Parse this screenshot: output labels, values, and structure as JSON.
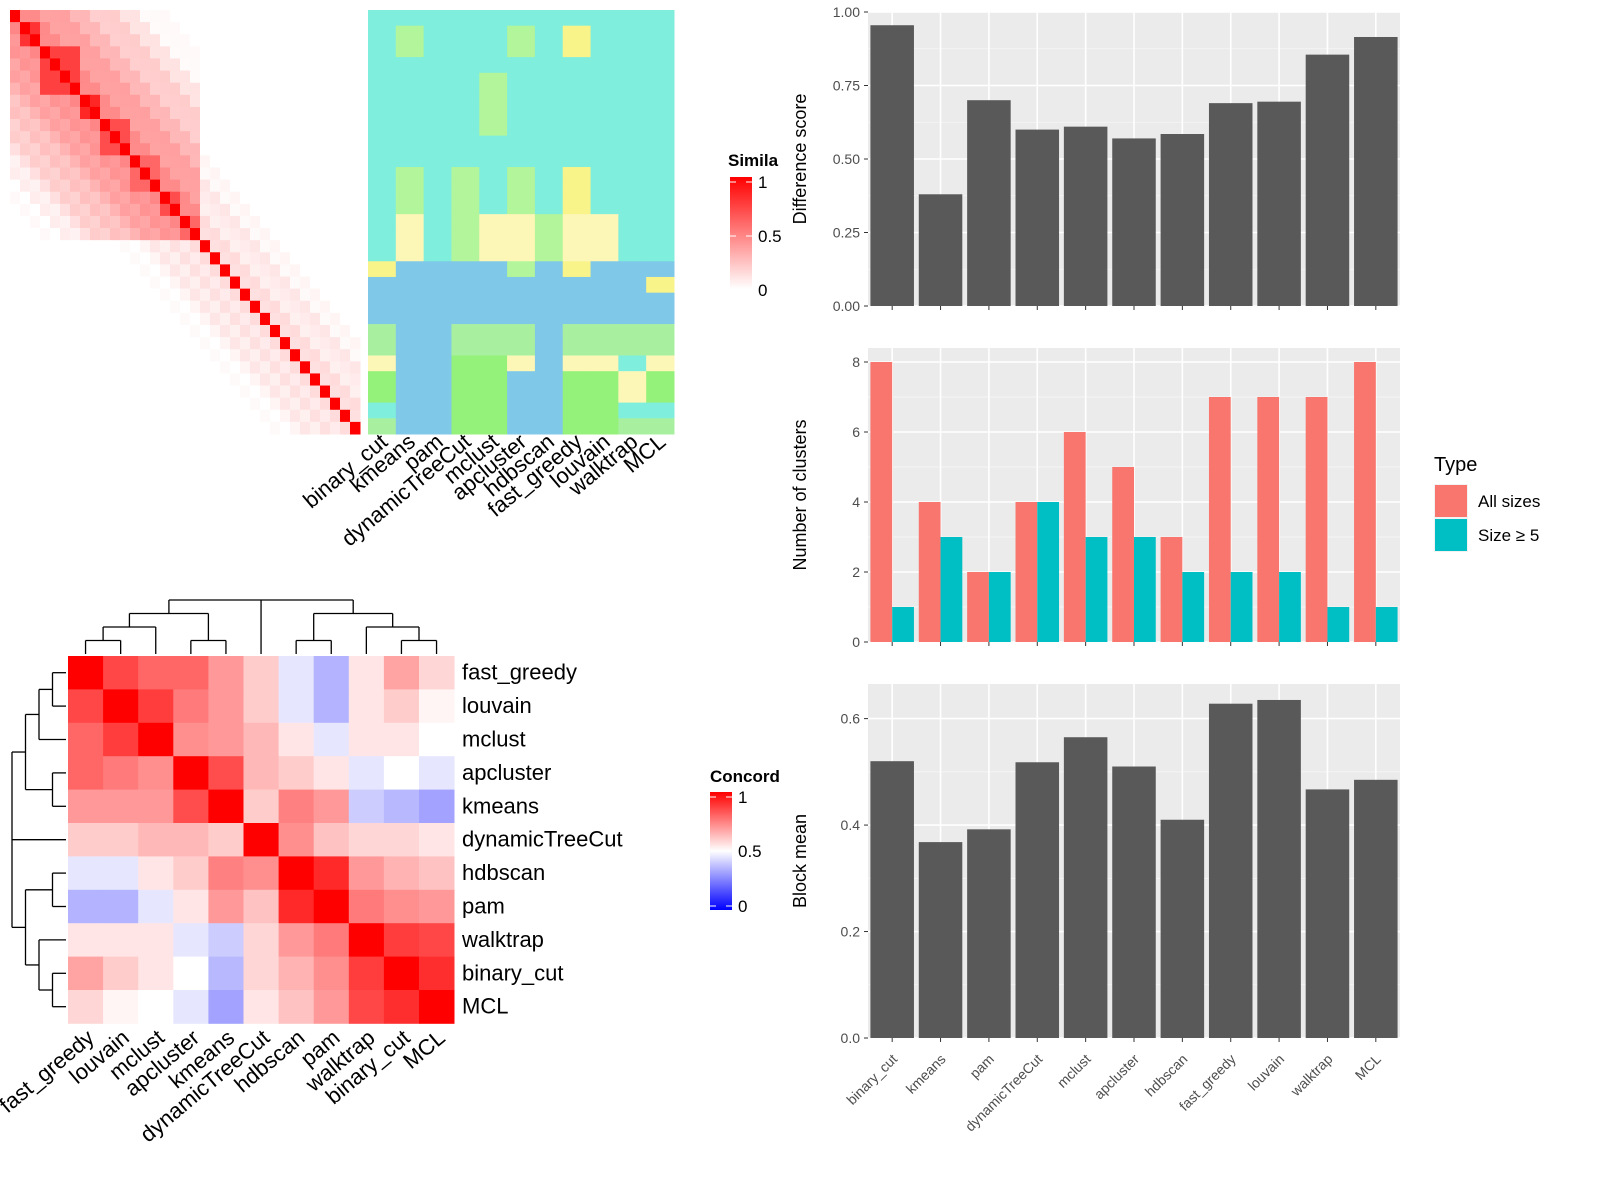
{
  "methods": [
    "binary_cut",
    "kmeans",
    "pam",
    "dynamicTreeCut",
    "mclust",
    "apcluster",
    "hdbscan",
    "fast_greedy",
    "louvain",
    "walktrap",
    "MCL"
  ],
  "chart_data": [
    {
      "id": "similarity-heatmap",
      "type": "heatmap",
      "legend_title": "Simila",
      "legend_ticks": [
        "1",
        "0.5",
        "0"
      ],
      "colors": {
        "high": "#ff0000",
        "low": "#ffffff"
      },
      "n": 35,
      "block_sizes": [
        1,
        2,
        4,
        2,
        3,
        3,
        2,
        2,
        1,
        1,
        1,
        1,
        1,
        1,
        1,
        1,
        1,
        1,
        1,
        1,
        1,
        1,
        1,
        1
      ],
      "intra_values": [
        0.85,
        0.8,
        0.75,
        0.85,
        0.7,
        0.6,
        0.7,
        0.6,
        0.5,
        0.5,
        0.4,
        0.3,
        0.2,
        0.2,
        0.2,
        0.15,
        0.15,
        0.1,
        0.1,
        0.1,
        0.1,
        0.1,
        0.1,
        0.1
      ]
    },
    {
      "id": "cluster-membership",
      "type": "heatmap",
      "columns": [
        "binary_cut",
        "kmeans",
        "pam",
        "dynamicTreeCut",
        "mclust",
        "apcluster",
        "hdbscan",
        "fast_greedy",
        "louvain",
        "walktrap",
        "MCL"
      ],
      "palette": {
        "0": "#80eedc",
        "1": "#b3f59a",
        "2": "#f9f48a",
        "3": "#fdf7b7",
        "4": "#80c8e8",
        "5": "#94f17a",
        "6": "#a8f0a0"
      },
      "rows_compressed": [
        {
          "repeat": 1,
          "cells": [
            0,
            0,
            0,
            0,
            0,
            0,
            0,
            0,
            0,
            0,
            0
          ]
        },
        {
          "repeat": 2,
          "cells": [
            0,
            1,
            0,
            0,
            0,
            1,
            0,
            2,
            0,
            0,
            0
          ]
        },
        {
          "repeat": 1,
          "cells": [
            0,
            0,
            0,
            0,
            0,
            0,
            0,
            0,
            0,
            0,
            0
          ]
        },
        {
          "repeat": 4,
          "cells": [
            0,
            0,
            0,
            0,
            1,
            0,
            0,
            0,
            0,
            0,
            0
          ]
        },
        {
          "repeat": 2,
          "cells": [
            0,
            0,
            0,
            0,
            0,
            0,
            0,
            0,
            0,
            0,
            0
          ]
        },
        {
          "repeat": 3,
          "cells": [
            0,
            1,
            0,
            1,
            0,
            1,
            0,
            2,
            0,
            0,
            0
          ]
        },
        {
          "repeat": 3,
          "cells": [
            0,
            3,
            0,
            1,
            3,
            3,
            1,
            3,
            3,
            0,
            0
          ]
        },
        {
          "repeat": 1,
          "cells": [
            2,
            4,
            4,
            4,
            4,
            1,
            4,
            2,
            4,
            4,
            4
          ]
        },
        {
          "repeat": 1,
          "cells": [
            4,
            4,
            4,
            4,
            4,
            4,
            4,
            4,
            4,
            4,
            2
          ]
        },
        {
          "repeat": 2,
          "cells": [
            4,
            4,
            4,
            4,
            4,
            4,
            4,
            4,
            4,
            4,
            4
          ]
        },
        {
          "repeat": 2,
          "cells": [
            6,
            4,
            4,
            6,
            6,
            6,
            4,
            6,
            6,
            6,
            6
          ]
        },
        {
          "repeat": 1,
          "cells": [
            3,
            4,
            4,
            5,
            5,
            3,
            4,
            3,
            3,
            0,
            3
          ]
        },
        {
          "repeat": 2,
          "cells": [
            5,
            4,
            4,
            5,
            5,
            4,
            4,
            5,
            5,
            3,
            5
          ]
        },
        {
          "repeat": 1,
          "cells": [
            0,
            4,
            4,
            5,
            5,
            4,
            4,
            5,
            5,
            0,
            0
          ]
        },
        {
          "repeat": 1,
          "cells": [
            6,
            4,
            4,
            5,
            5,
            4,
            4,
            5,
            5,
            6,
            6
          ]
        }
      ]
    },
    {
      "id": "concordance-heatmap",
      "type": "heatmap",
      "order": [
        "fast_greedy",
        "louvain",
        "mclust",
        "apcluster",
        "kmeans",
        "dynamicTreeCut",
        "hdbscan",
        "pam",
        "walktrap",
        "binary_cut",
        "MCL"
      ],
      "legend_title": "Concord",
      "legend_ticks": [
        "1",
        "0.5",
        "0"
      ],
      "colors": {
        "high": "#ff0000",
        "mid": "#ffffff",
        "low": "#0000ff"
      },
      "values": [
        [
          1.0,
          0.86,
          0.8,
          0.8,
          0.7,
          0.6,
          0.45,
          0.35,
          0.55,
          0.68,
          0.58
        ],
        [
          0.86,
          1.0,
          0.88,
          0.76,
          0.7,
          0.6,
          0.45,
          0.35,
          0.55,
          0.6,
          0.52
        ],
        [
          0.8,
          0.88,
          1.0,
          0.72,
          0.7,
          0.64,
          0.55,
          0.45,
          0.55,
          0.55,
          0.5
        ],
        [
          0.8,
          0.76,
          0.72,
          1.0,
          0.85,
          0.64,
          0.6,
          0.55,
          0.45,
          0.5,
          0.45
        ],
        [
          0.7,
          0.7,
          0.7,
          0.85,
          1.0,
          0.6,
          0.75,
          0.7,
          0.4,
          0.36,
          0.32
        ],
        [
          0.6,
          0.6,
          0.64,
          0.64,
          0.6,
          1.0,
          0.72,
          0.62,
          0.58,
          0.58,
          0.55
        ],
        [
          0.45,
          0.45,
          0.55,
          0.6,
          0.75,
          0.72,
          1.0,
          0.92,
          0.7,
          0.65,
          0.62
        ],
        [
          0.35,
          0.35,
          0.45,
          0.55,
          0.7,
          0.62,
          0.92,
          1.0,
          0.76,
          0.72,
          0.7
        ],
        [
          0.55,
          0.55,
          0.55,
          0.45,
          0.4,
          0.58,
          0.7,
          0.76,
          1.0,
          0.88,
          0.86
        ],
        [
          0.68,
          0.6,
          0.55,
          0.5,
          0.36,
          0.58,
          0.65,
          0.72,
          0.88,
          1.0,
          0.91
        ],
        [
          0.58,
          0.52,
          0.5,
          0.45,
          0.32,
          0.55,
          0.62,
          0.7,
          0.86,
          0.91,
          1.0
        ]
      ]
    },
    {
      "id": "difference-score",
      "type": "bar",
      "categories": [
        "binary_cut",
        "kmeans",
        "pam",
        "dynamicTreeCut",
        "mclust",
        "apcluster",
        "hdbscan",
        "fast_greedy",
        "louvain",
        "walktrap",
        "MCL"
      ],
      "values": [
        0.955,
        0.38,
        0.7,
        0.6,
        0.61,
        0.57,
        0.585,
        0.69,
        0.695,
        0.855,
        0.915
      ],
      "ylabel": "Difference score",
      "ylim": [
        0,
        1.0
      ],
      "yticks": [
        "0.00",
        "0.25",
        "0.50",
        "0.75",
        "1.00"
      ],
      "ytick_values": [
        0,
        0.25,
        0.5,
        0.75,
        1.0
      ],
      "bar_color": "#595959"
    },
    {
      "id": "number-of-clusters",
      "type": "bar",
      "categories": [
        "binary_cut",
        "kmeans",
        "pam",
        "dynamicTreeCut",
        "mclust",
        "apcluster",
        "hdbscan",
        "fast_greedy",
        "louvain",
        "walktrap",
        "MCL"
      ],
      "series": [
        {
          "name": "All sizes",
          "values": [
            8,
            4,
            2,
            4,
            6,
            5,
            3,
            7,
            7,
            7,
            8
          ],
          "color": "#f8766d"
        },
        {
          "name": "Size ≥ 5",
          "values": [
            1,
            3,
            2,
            4,
            3,
            3,
            2,
            2,
            2,
            1,
            1
          ],
          "color": "#00bfc4"
        }
      ],
      "ylabel": "Number of clusters",
      "ylim": [
        0,
        8.4
      ],
      "yticks": [
        "0",
        "2",
        "4",
        "6",
        "8"
      ],
      "ytick_values": [
        0,
        2,
        4,
        6,
        8
      ],
      "legend_title": "Type",
      "legend_position": "right"
    },
    {
      "id": "block-mean",
      "type": "bar",
      "categories": [
        "binary_cut",
        "kmeans",
        "pam",
        "dynamicTreeCut",
        "mclust",
        "apcluster",
        "hdbscan",
        "fast_greedy",
        "louvain",
        "walktrap",
        "MCL"
      ],
      "values": [
        0.52,
        0.368,
        0.392,
        0.518,
        0.565,
        0.51,
        0.41,
        0.628,
        0.635,
        0.467,
        0.485
      ],
      "ylabel": "Block mean",
      "ylim": [
        0,
        0.665
      ],
      "yticks": [
        "0.0",
        "0.2",
        "0.4",
        "0.6"
      ],
      "ytick_values": [
        0,
        0.2,
        0.4,
        0.6
      ],
      "bar_color": "#595959"
    }
  ]
}
